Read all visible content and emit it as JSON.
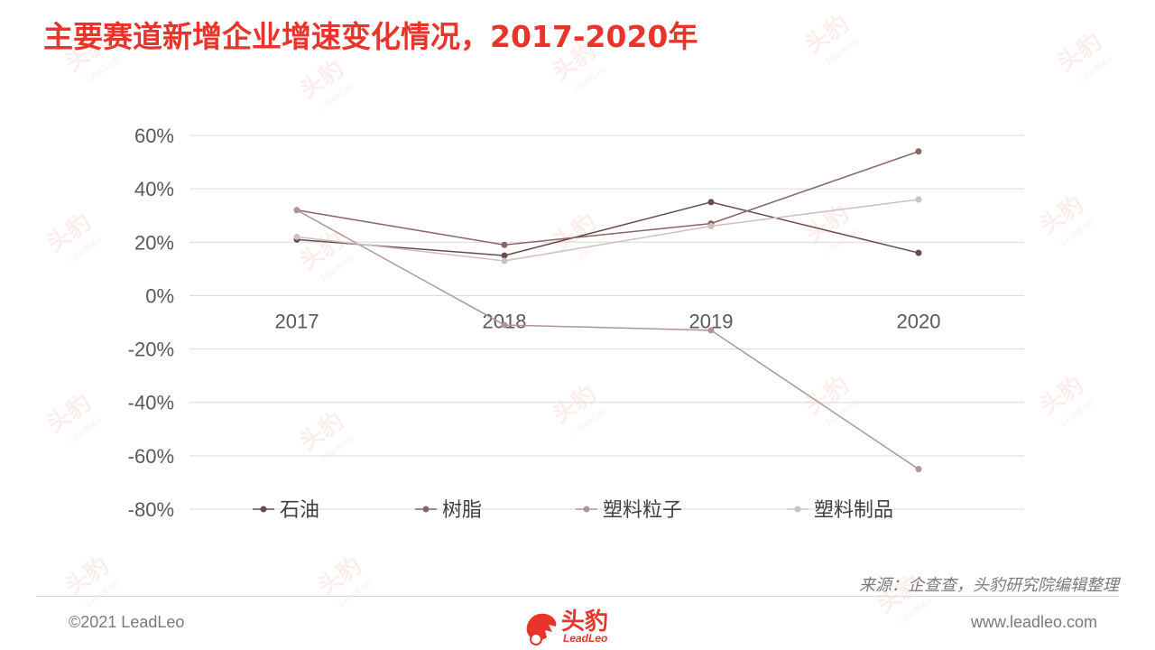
{
  "title": "主要赛道新增企业增速变化情况，2017-2020年",
  "source": "来源：企查查，头豹研究院编辑整理",
  "footer": {
    "copyright": "©2021 LeadLeo",
    "website": "www.leadleo.com",
    "logo_cn": "头豹",
    "logo_en": "LeadLeo"
  },
  "watermark": {
    "cn": "头豹",
    "en": "LeadLeo"
  },
  "colors": {
    "title": "#e8342a",
    "gridline": "#d9d9d9",
    "axis_text": "#595959"
  },
  "chart_data": {
    "type": "line",
    "categories": [
      "2017",
      "2018",
      "2019",
      "2020"
    ],
    "ylim": [
      -80,
      60
    ],
    "yticks": [
      60,
      40,
      20,
      0,
      -20,
      -40,
      -60,
      -80
    ],
    "ytick_labels": [
      "60%",
      "40%",
      "20%",
      "0%",
      "-20%",
      "-40%",
      "-60%",
      "-80%"
    ],
    "grid": true,
    "legend_position": "bottom",
    "series": [
      {
        "name": "石油",
        "values": [
          21,
          15,
          35,
          16
        ],
        "color": "#6b4a4a"
      },
      {
        "name": "树脂",
        "values": [
          32,
          19,
          27,
          54
        ],
        "color": "#8c6464"
      },
      {
        "name": "塑料粒子",
        "values": [
          32,
          -11,
          -13,
          -65
        ],
        "color": "#b09595"
      },
      {
        "name": "塑料制品",
        "values": [
          22,
          13,
          26,
          36
        ],
        "color": "#cfc0c0"
      }
    ]
  }
}
